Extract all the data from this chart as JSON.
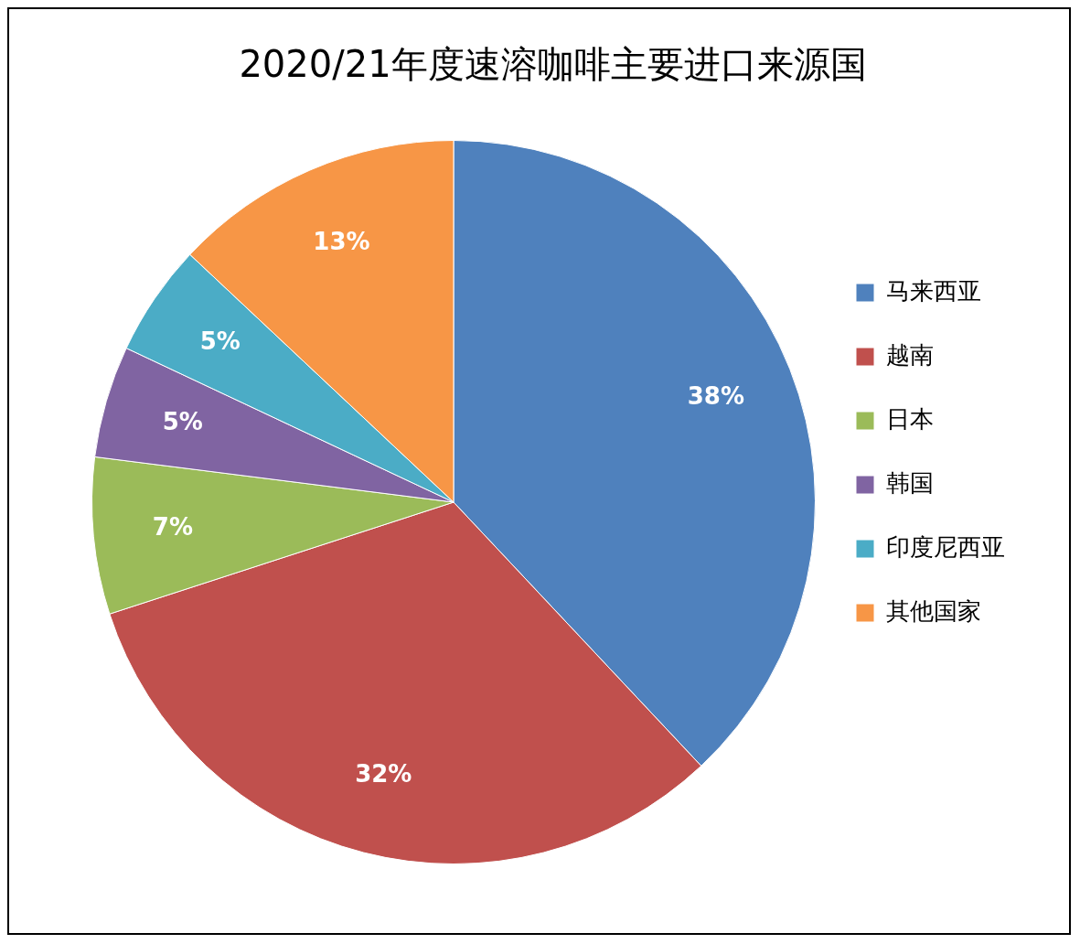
{
  "chart_data": {
    "type": "pie",
    "title": "2020/21年度速溶咖啡主要进口来源国",
    "categories": [
      "马来西亚",
      "越南",
      "日本",
      "韩国",
      "印度尼西亚",
      "其他国家"
    ],
    "values": [
      38,
      32,
      7,
      5,
      5,
      13
    ],
    "colors": [
      "#4f81bd",
      "#c0504d",
      "#9bbb59",
      "#8064a2",
      "#4bacc6",
      "#f79646"
    ],
    "value_labels": [
      "38%",
      "32%",
      "7%",
      "5%",
      "5%",
      "13%"
    ],
    "legend": "right"
  }
}
